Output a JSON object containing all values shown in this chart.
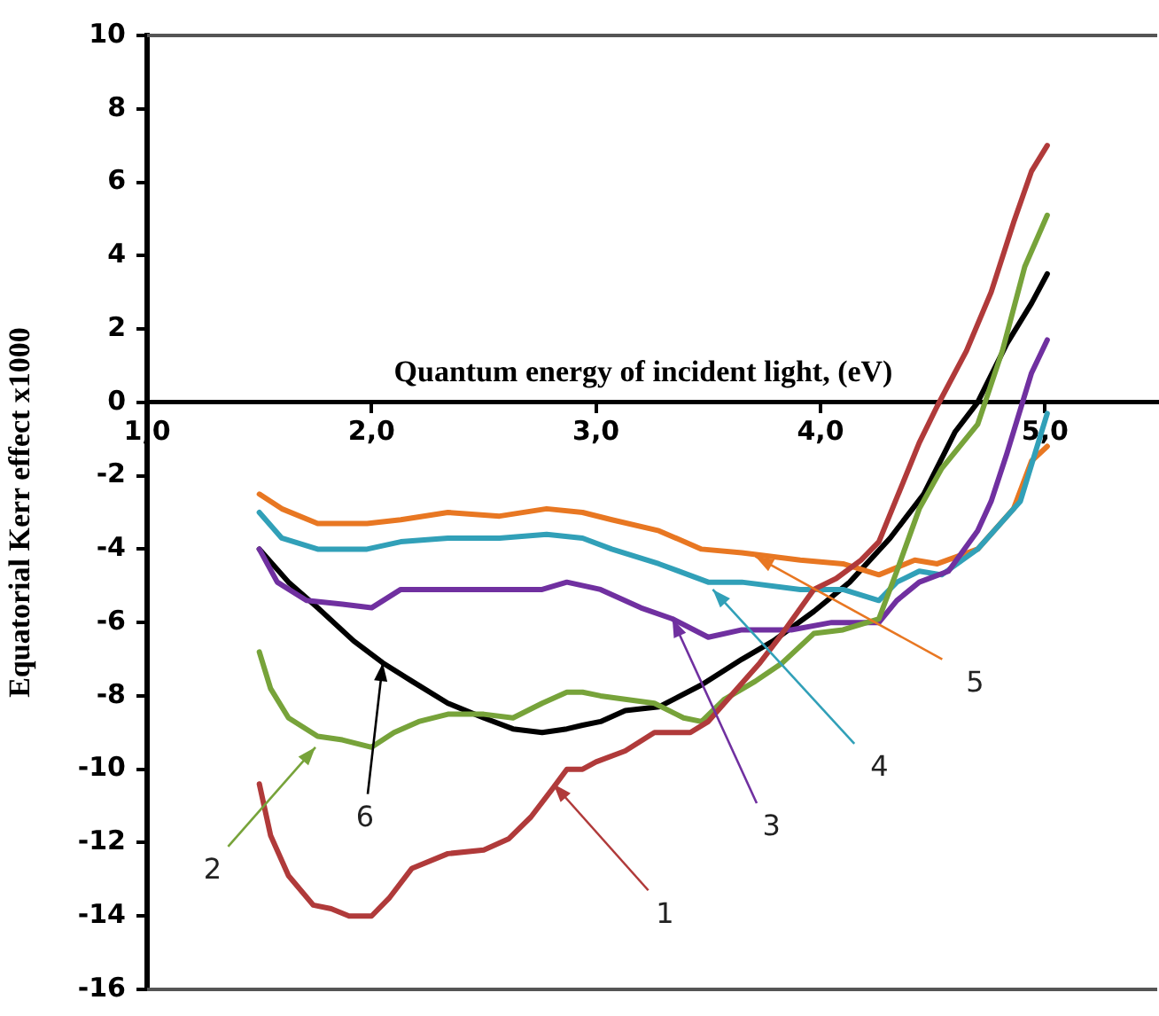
{
  "chart_data": {
    "type": "line",
    "xlabel": "Quantum energy of incident light, (eV)",
    "ylabel": "Equatorial Kerr effect x1000",
    "xlim": [
      1,
      5.5
    ],
    "xticks": [
      {
        "value": 1,
        "label": "1,0"
      },
      {
        "value": 2,
        "label": "2,0"
      },
      {
        "value": 3,
        "label": "3,0"
      },
      {
        "value": 4,
        "label": "4,0"
      },
      {
        "value": 5,
        "label": "5,0"
      }
    ],
    "ylim": [
      -16,
      10
    ],
    "yticks": [
      -16,
      -14,
      -12,
      -10,
      -8,
      -6,
      -4,
      -2,
      0,
      2,
      4,
      6,
      8,
      10
    ],
    "grid": false,
    "legend": false,
    "marker": "none",
    "line_style": "solid",
    "series": [
      {
        "color": "#b03a3a",
        "x": [
          1.5,
          1.55,
          1.63,
          1.74,
          1.82,
          1.9,
          2.0,
          2.08,
          2.18,
          2.34,
          2.5,
          2.61,
          2.71,
          2.81,
          2.87,
          2.94,
          3.0,
          3.13,
          3.26,
          3.42,
          3.5,
          3.6,
          3.73,
          3.83,
          3.97,
          4.07,
          4.18,
          4.26,
          4.34,
          4.44,
          4.52,
          4.65,
          4.76,
          4.86,
          4.94,
          5.01
        ],
        "values": [
          -10.4,
          -11.8,
          -12.9,
          -13.7,
          -13.8,
          -14.0,
          -14.0,
          -13.5,
          -12.7,
          -12.3,
          -12.2,
          -11.9,
          -11.3,
          -10.5,
          -10.0,
          -10.0,
          -9.8,
          -9.5,
          -9.0,
          -9.0,
          -8.7,
          -8.0,
          -7.1,
          -6.3,
          -5.1,
          -4.8,
          -4.3,
          -3.8,
          -2.6,
          -1.1,
          -0.1,
          1.4,
          3.0,
          4.9,
          6.3,
          7.0
        ]
      },
      {
        "color": "#77a33a",
        "x": [
          1.5,
          1.55,
          1.63,
          1.76,
          1.87,
          2.0,
          2.1,
          2.21,
          2.34,
          2.5,
          2.63,
          2.76,
          2.87,
          2.94,
          3.02,
          3.26,
          3.39,
          3.47,
          3.57,
          3.71,
          3.83,
          3.97,
          4.1,
          4.26,
          4.34,
          4.44,
          4.54,
          4.7,
          4.81,
          4.91,
          5.01
        ],
        "values": [
          -6.8,
          -7.8,
          -8.6,
          -9.1,
          -9.2,
          -9.4,
          -9.0,
          -8.7,
          -8.5,
          -8.5,
          -8.6,
          -8.2,
          -7.9,
          -7.9,
          -8.0,
          -8.2,
          -8.6,
          -8.7,
          -8.1,
          -7.6,
          -7.1,
          -6.3,
          -6.2,
          -5.9,
          -4.6,
          -2.9,
          -1.8,
          -0.6,
          1.4,
          3.7,
          5.1
        ]
      },
      {
        "color": "#7030a0",
        "x": [
          1.5,
          1.58,
          1.71,
          1.87,
          2.0,
          2.13,
          2.34,
          2.57,
          2.76,
          2.87,
          3.02,
          3.2,
          3.34,
          3.5,
          3.65,
          3.87,
          4.05,
          4.26,
          4.34,
          4.44,
          4.57,
          4.7,
          4.76,
          4.83,
          4.94,
          5.01
        ],
        "values": [
          -4.0,
          -4.9,
          -5.4,
          -5.5,
          -5.6,
          -5.1,
          -5.1,
          -5.1,
          -5.1,
          -4.9,
          -5.1,
          -5.6,
          -5.9,
          -6.4,
          -6.2,
          -6.2,
          -6.0,
          -6.0,
          -5.4,
          -4.9,
          -4.6,
          -3.5,
          -2.7,
          -1.4,
          0.8,
          1.7
        ]
      },
      {
        "color": "#31a0b8",
        "x": [
          1.5,
          1.6,
          1.76,
          1.98,
          2.13,
          2.34,
          2.57,
          2.78,
          2.94,
          3.07,
          3.28,
          3.5,
          3.65,
          3.91,
          4.1,
          4.26,
          4.34,
          4.44,
          4.54,
          4.7,
          4.89,
          4.97,
          5.01
        ],
        "values": [
          -3.0,
          -3.7,
          -4.0,
          -4.0,
          -3.8,
          -3.7,
          -3.7,
          -3.6,
          -3.7,
          -4.0,
          -4.4,
          -4.9,
          -4.9,
          -5.1,
          -5.1,
          -5.4,
          -4.9,
          -4.6,
          -4.7,
          -4.0,
          -2.7,
          -1.1,
          -0.3
        ]
      },
      {
        "color": "#e87722",
        "x": [
          1.5,
          1.6,
          1.76,
          1.98,
          2.13,
          2.34,
          2.57,
          2.78,
          2.94,
          3.07,
          3.28,
          3.47,
          3.65,
          3.91,
          4.1,
          4.26,
          4.42,
          4.52,
          4.7,
          4.86,
          4.94,
          5.01
        ],
        "values": [
          -2.5,
          -2.9,
          -3.3,
          -3.3,
          -3.2,
          -3.0,
          -3.1,
          -2.9,
          -3.0,
          -3.2,
          -3.5,
          -4.0,
          -4.1,
          -4.3,
          -4.4,
          -4.7,
          -4.3,
          -4.4,
          -4.0,
          -2.9,
          -1.6,
          -1.2
        ]
      },
      {
        "color": "#000000",
        "x": [
          1.5,
          1.63,
          1.76,
          1.92,
          2.05,
          2.18,
          2.34,
          2.5,
          2.63,
          2.76,
          2.87,
          2.94,
          3.02,
          3.13,
          3.28,
          3.47,
          3.65,
          3.79,
          3.97,
          4.13,
          4.31,
          4.46,
          4.6,
          4.7,
          4.83,
          4.94,
          5.01
        ],
        "values": [
          -4.0,
          -4.9,
          -5.6,
          -6.5,
          -7.1,
          -7.6,
          -8.2,
          -8.6,
          -8.9,
          -9.0,
          -8.9,
          -8.8,
          -8.7,
          -8.4,
          -8.3,
          -7.7,
          -7.0,
          -6.5,
          -5.7,
          -4.9,
          -3.7,
          -2.5,
          -0.8,
          0.0,
          1.6,
          2.7,
          3.5
        ]
      }
    ],
    "annotations": [
      {
        "text": "1",
        "x": 2.81,
        "y": -10.4
      },
      {
        "text": "2",
        "x": 1.75,
        "y": -9.4
      },
      {
        "text": "3",
        "x": 3.34,
        "y": -5.9
      },
      {
        "text": "4",
        "x": 3.52,
        "y": -5.1
      },
      {
        "text": "5",
        "x": 3.71,
        "y": -4.2
      },
      {
        "text": "6",
        "x": 2.05,
        "y": -7.1
      }
    ]
  }
}
